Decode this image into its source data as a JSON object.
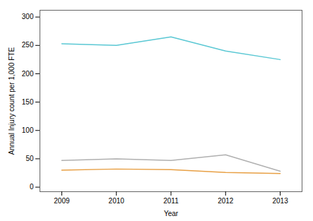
{
  "chart_data": {
    "type": "line",
    "xlabel": "Year",
    "ylabel": "Annual Injury count per 1,000 FTE",
    "x": [
      2009,
      2010,
      2011,
      2012,
      2013
    ],
    "series": [
      {
        "color": "#5bc8d4",
        "values": [
          253,
          250,
          265,
          240,
          225
        ]
      },
      {
        "color": "#e8a045",
        "values": [
          30,
          32,
          31,
          26,
          24
        ]
      },
      {
        "color": "#b0b0b0",
        "values": [
          47,
          50,
          47,
          57,
          28
        ]
      }
    ],
    "xlim": [
      2008.6,
      2013.4
    ],
    "ylim": [
      -8,
      312
    ],
    "xticks": [
      2009,
      2010,
      2011,
      2012,
      2013
    ],
    "yticks": [
      0,
      50,
      100,
      150,
      200,
      250,
      300
    ],
    "grid": false
  }
}
